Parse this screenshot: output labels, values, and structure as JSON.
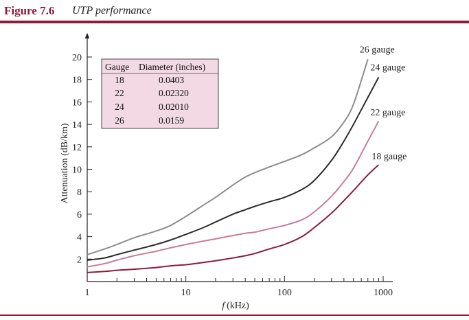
{
  "figure": {
    "number": "Figure 7.6",
    "caption": "UTP performance"
  },
  "colors": {
    "accent": "#8e1a3c",
    "table_bg": "#f2d9e3"
  },
  "chart_data": {
    "type": "line",
    "x_scale": "log",
    "xlim": [
      1,
      1000
    ],
    "ylim": [
      0,
      21
    ],
    "xlabel_var": "f",
    "xlabel_unit": "(kHz)",
    "ylabel": "Attenuation (dB/km)",
    "x_ticks": [
      1,
      10,
      100,
      1000
    ],
    "x_tick_labels": [
      "1",
      "10",
      "100",
      "1000"
    ],
    "y_ticks": [
      2,
      4,
      6,
      8,
      10,
      12,
      14,
      16,
      18,
      20
    ],
    "y_tick_labels": [
      "2",
      "4",
      "6",
      "8",
      "10",
      "12",
      "14",
      "16",
      "18",
      "20"
    ],
    "grid": false,
    "series": [
      {
        "name": "26 gauge",
        "color": "#8c8c8c",
        "x": [
          1,
          1.5,
          2,
          3,
          5,
          7,
          10,
          15,
          20,
          30,
          40,
          50,
          70,
          100,
          150,
          200,
          300,
          400,
          500,
          700
        ],
        "y": [
          2.4,
          2.9,
          3.3,
          3.9,
          4.5,
          5.0,
          5.8,
          6.8,
          7.5,
          8.6,
          9.3,
          9.7,
          10.2,
          10.7,
          11.3,
          11.9,
          12.9,
          14.2,
          15.8,
          19.8
        ]
      },
      {
        "name": "24 gauge",
        "color": "#2b2b2b",
        "x": [
          1,
          1.5,
          2,
          3,
          5,
          7,
          10,
          15,
          20,
          30,
          40,
          50,
          70,
          100,
          150,
          200,
          300,
          400,
          500,
          700,
          900
        ],
        "y": [
          1.9,
          2.1,
          2.4,
          2.8,
          3.3,
          3.7,
          4.2,
          4.8,
          5.3,
          6.0,
          6.4,
          6.7,
          7.1,
          7.5,
          8.2,
          9.0,
          10.8,
          12.5,
          14.0,
          16.4,
          18.2
        ]
      },
      {
        "name": "22 gauge",
        "color": "#c77b9c",
        "x": [
          1,
          1.5,
          2,
          3,
          5,
          7,
          10,
          15,
          20,
          30,
          40,
          50,
          70,
          100,
          150,
          200,
          300,
          400,
          500,
          700,
          900
        ],
        "y": [
          1.3,
          1.6,
          1.9,
          2.3,
          2.7,
          3.0,
          3.3,
          3.6,
          3.8,
          4.1,
          4.3,
          4.4,
          4.7,
          5.0,
          5.5,
          6.2,
          7.6,
          8.9,
          10.1,
          12.5,
          14.3
        ]
      },
      {
        "name": "18 gauge",
        "color": "#8e1a3c",
        "x": [
          1,
          1.5,
          2,
          3,
          5,
          7,
          10,
          15,
          20,
          30,
          40,
          50,
          70,
          100,
          150,
          200,
          300,
          400,
          500,
          700,
          900
        ],
        "y": [
          0.8,
          0.9,
          1.0,
          1.1,
          1.25,
          1.4,
          1.5,
          1.7,
          1.85,
          2.1,
          2.3,
          2.5,
          2.9,
          3.3,
          4.0,
          4.8,
          6.1,
          7.2,
          8.1,
          9.5,
          10.4
        ]
      }
    ],
    "table": {
      "headers": [
        "Gauge",
        "Diameter (inches)"
      ],
      "rows": [
        [
          "18",
          "0.0403"
        ],
        [
          "22",
          "0.02320"
        ],
        [
          "24",
          "0.02010"
        ],
        [
          "26",
          "0.0159"
        ]
      ]
    }
  }
}
